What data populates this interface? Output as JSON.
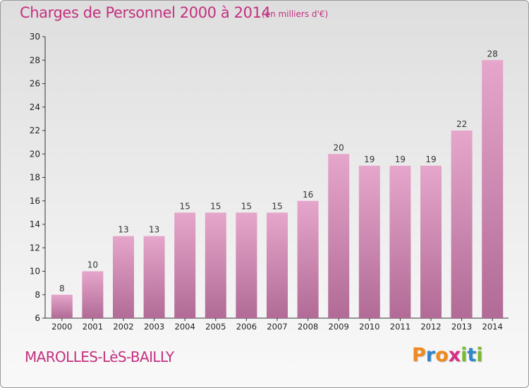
{
  "header": {
    "title": "Charges de Personnel 2000 à 2014",
    "unit_note": "(en milliers d'€)"
  },
  "footer": {
    "commune": "MAROLLES-LèS-BAILLY",
    "logo_letters": [
      "P",
      "r",
      "o",
      "x",
      "i",
      "t",
      "i"
    ],
    "logo_colors": [
      "#f08a1c",
      "#2e86c8",
      "#f08a1c",
      "#d62f86",
      "#79b92e",
      "#2e86c8",
      "#79b92e"
    ]
  },
  "colors": {
    "accent": "#c4307f",
    "bar_top": "#e6a6cb",
    "bar_bottom": "#b16b96",
    "axis": "#333333"
  },
  "chart_data": {
    "type": "bar",
    "title": "Charges de Personnel 2000 à 2014",
    "subtitle": "(en milliers d'€)",
    "xlabel": "",
    "ylabel": "",
    "categories": [
      "2000",
      "2001",
      "2002",
      "2003",
      "2004",
      "2005",
      "2006",
      "2007",
      "2008",
      "2009",
      "2010",
      "2011",
      "2012",
      "2013",
      "2014"
    ],
    "values": [
      8,
      10,
      13,
      13,
      15,
      15,
      15,
      15,
      16,
      20,
      19,
      19,
      19,
      22,
      28
    ],
    "data_labels": [
      "8",
      "10",
      "13",
      "13",
      "15",
      "15",
      "15",
      "15",
      "16",
      "20",
      "19",
      "19",
      "19",
      "22",
      "28"
    ],
    "ylim": [
      6,
      30
    ],
    "yticks": [
      6,
      8,
      10,
      12,
      14,
      16,
      18,
      20,
      22,
      24,
      26,
      28,
      30
    ],
    "grid": false,
    "legend": "none"
  }
}
